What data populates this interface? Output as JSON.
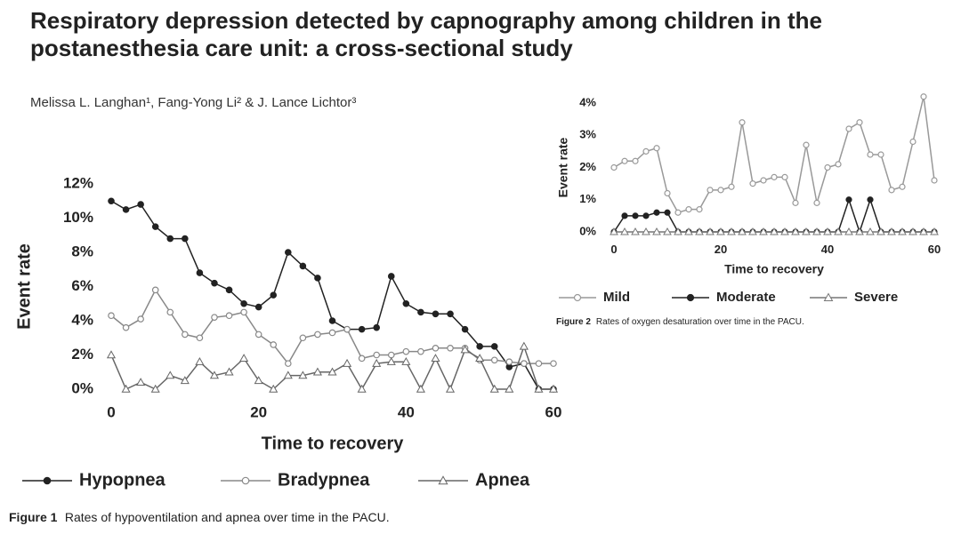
{
  "header": {
    "title": "Respiratory depression detected by capnography among children in the postanesthesia care unit: a cross-sectional study",
    "authors": "Melissa L. Langhan¹, Fang-Yong Li² & J. Lance Lichtor³"
  },
  "chart_data": [
    {
      "type": "line",
      "xlabel": "Time to recovery",
      "ylabel": "Event rate",
      "x": [
        0,
        2,
        4,
        6,
        8,
        10,
        12,
        14,
        16,
        18,
        20,
        22,
        24,
        26,
        28,
        30,
        32,
        34,
        36,
        38,
        40,
        42,
        44,
        46,
        48,
        50,
        52,
        54,
        56,
        58,
        60
      ],
      "xlim": [
        0,
        60
      ],
      "xticks": [
        0,
        20,
        40,
        60
      ],
      "ylim": [
        0,
        12
      ],
      "yticks": [
        {
          "value": 0,
          "label": "0%"
        },
        {
          "value": 2,
          "label": "2%"
        },
        {
          "value": 4,
          "label": "4%"
        },
        {
          "value": 6,
          "label": "6%"
        },
        {
          "value": 8,
          "label": "8%"
        },
        {
          "value": 10,
          "label": "10%"
        },
        {
          "value": 12,
          "label": "12%"
        }
      ],
      "grid": false,
      "series": [
        {
          "name": "Hypopnea",
          "color": "#222222",
          "marker": "circle-filled",
          "values": [
            11,
            10.5,
            10.8,
            9.5,
            8.8,
            8.8,
            6.8,
            6.2,
            5.8,
            5,
            4.8,
            5.5,
            8,
            7.2,
            6.5,
            4,
            3.5,
            3.5,
            3.6,
            6.6,
            5,
            4.5,
            4.4,
            4.4,
            3.5,
            2.5,
            2.5,
            1.3,
            1.5,
            0,
            0
          ]
        },
        {
          "name": "Bradypnea",
          "color": "#888888",
          "marker": "circle-open",
          "values": [
            4.3,
            3.6,
            4.1,
            5.8,
            4.5,
            3.2,
            3,
            4.2,
            4.3,
            4.5,
            3.2,
            2.6,
            1.5,
            3,
            3.2,
            3.3,
            3.5,
            1.8,
            2,
            2,
            2.2,
            2.2,
            2.4,
            2.4,
            2.4,
            1.7,
            1.7,
            1.6,
            1.5,
            1.5,
            1.5
          ]
        },
        {
          "name": "Apnea",
          "color": "#666666",
          "marker": "triangle-open",
          "values": [
            2,
            0,
            0.4,
            0,
            0.8,
            0.5,
            1.6,
            0.8,
            1,
            1.8,
            0.5,
            0,
            0.8,
            0.8,
            1,
            1,
            1.5,
            0,
            1.5,
            1.6,
            1.6,
            0,
            1.8,
            0,
            2.3,
            1.8,
            0,
            0,
            2.5,
            0,
            0
          ]
        }
      ],
      "caption": {
        "label": "Figure 1",
        "text": "Rates of hypoventilation and apnea over time in the PACU."
      }
    },
    {
      "type": "line",
      "xlabel": "Time to recovery",
      "ylabel": "Event rate",
      "x": [
        0,
        2,
        4,
        6,
        8,
        10,
        12,
        14,
        16,
        18,
        20,
        22,
        24,
        26,
        28,
        30,
        32,
        34,
        36,
        38,
        40,
        42,
        44,
        46,
        48,
        50,
        52,
        54,
        56,
        58,
        60
      ],
      "xlim": [
        0,
        60
      ],
      "xticks": [
        0,
        20,
        40,
        60
      ],
      "ylim": [
        0,
        4
      ],
      "yticks": [
        {
          "value": 0,
          "label": "0%"
        },
        {
          "value": 1,
          "label": "1%"
        },
        {
          "value": 2,
          "label": "2%"
        },
        {
          "value": 3,
          "label": "3%"
        },
        {
          "value": 4,
          "label": "4%"
        }
      ],
      "grid": false,
      "series": [
        {
          "name": "Mild",
          "color": "#999999",
          "marker": "circle-open",
          "values": [
            2,
            2.2,
            2.2,
            2.5,
            2.6,
            1.2,
            0.6,
            0.7,
            0.7,
            1.3,
            1.3,
            1.4,
            3.4,
            1.5,
            1.6,
            1.7,
            1.7,
            0.9,
            2.7,
            0.9,
            2,
            2.1,
            3.2,
            3.4,
            2.4,
            2.4,
            1.3,
            1.4,
            2.8,
            4.2,
            1.6
          ]
        },
        {
          "name": "Moderate",
          "color": "#222222",
          "marker": "circle-filled",
          "values": [
            0,
            0.5,
            0.5,
            0.5,
            0.6,
            0.6,
            0,
            0,
            0,
            0,
            0,
            0,
            0,
            0,
            0,
            0,
            0,
            0,
            0,
            0,
            0,
            0,
            1,
            0,
            1,
            0,
            0,
            0,
            0,
            0,
            0
          ]
        },
        {
          "name": "Severe",
          "color": "#777777",
          "marker": "triangle-open",
          "values": [
            0,
            0,
            0,
            0,
            0,
            0,
            0,
            0,
            0,
            0,
            0,
            0,
            0,
            0,
            0,
            0,
            0,
            0,
            0,
            0,
            0,
            0,
            0,
            0,
            0,
            0,
            0,
            0,
            0,
            0,
            0
          ]
        }
      ],
      "caption": {
        "label": "Figure 2",
        "text": "Rates of oxygen desaturation over time in the PACU."
      }
    }
  ]
}
